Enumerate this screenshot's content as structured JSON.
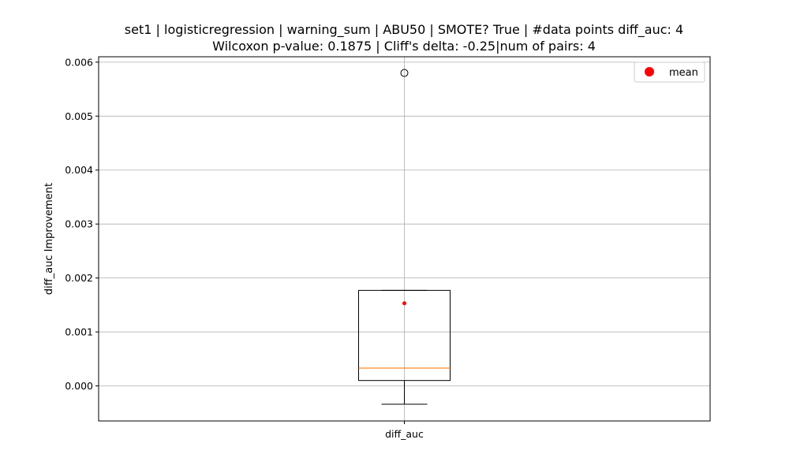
{
  "chart_data": {
    "type": "box",
    "title_line1": "set1 | logisticregression | warning_sum | ABU50 | SMOTE? True | #data points diff_auc: 4",
    "title_line2": "Wilcoxon p-value: 0.1875 | Cliff's delta: -0.25|num of pairs: 4",
    "xlabel": "",
    "ylabel": "diff_auc Improvement",
    "categories": [
      "diff_auc"
    ],
    "ylim": [
      -0.00065,
      0.0061
    ],
    "yticks": [
      0.0,
      0.001,
      0.002,
      0.003,
      0.004,
      0.005,
      0.006
    ],
    "ytick_labels": [
      "0.000",
      "0.001",
      "0.002",
      "0.003",
      "0.004",
      "0.005",
      "0.006"
    ],
    "grid": true,
    "legend": {
      "position": "top-right",
      "entries": [
        {
          "label": "mean",
          "color": "#ff0000"
        }
      ]
    },
    "boxes": [
      {
        "category": "diff_auc",
        "whisker_low": -0.00034,
        "q1": 0.0001,
        "median": 0.00033,
        "q3": 0.00177,
        "whisker_high": 0.00177,
        "mean": 0.00153,
        "outliers": [
          0.0058
        ]
      }
    ],
    "colors": {
      "median": "#ff7f0e",
      "mean": "#ff0000",
      "box": "#000000",
      "grid": "#b0b0b0"
    }
  }
}
